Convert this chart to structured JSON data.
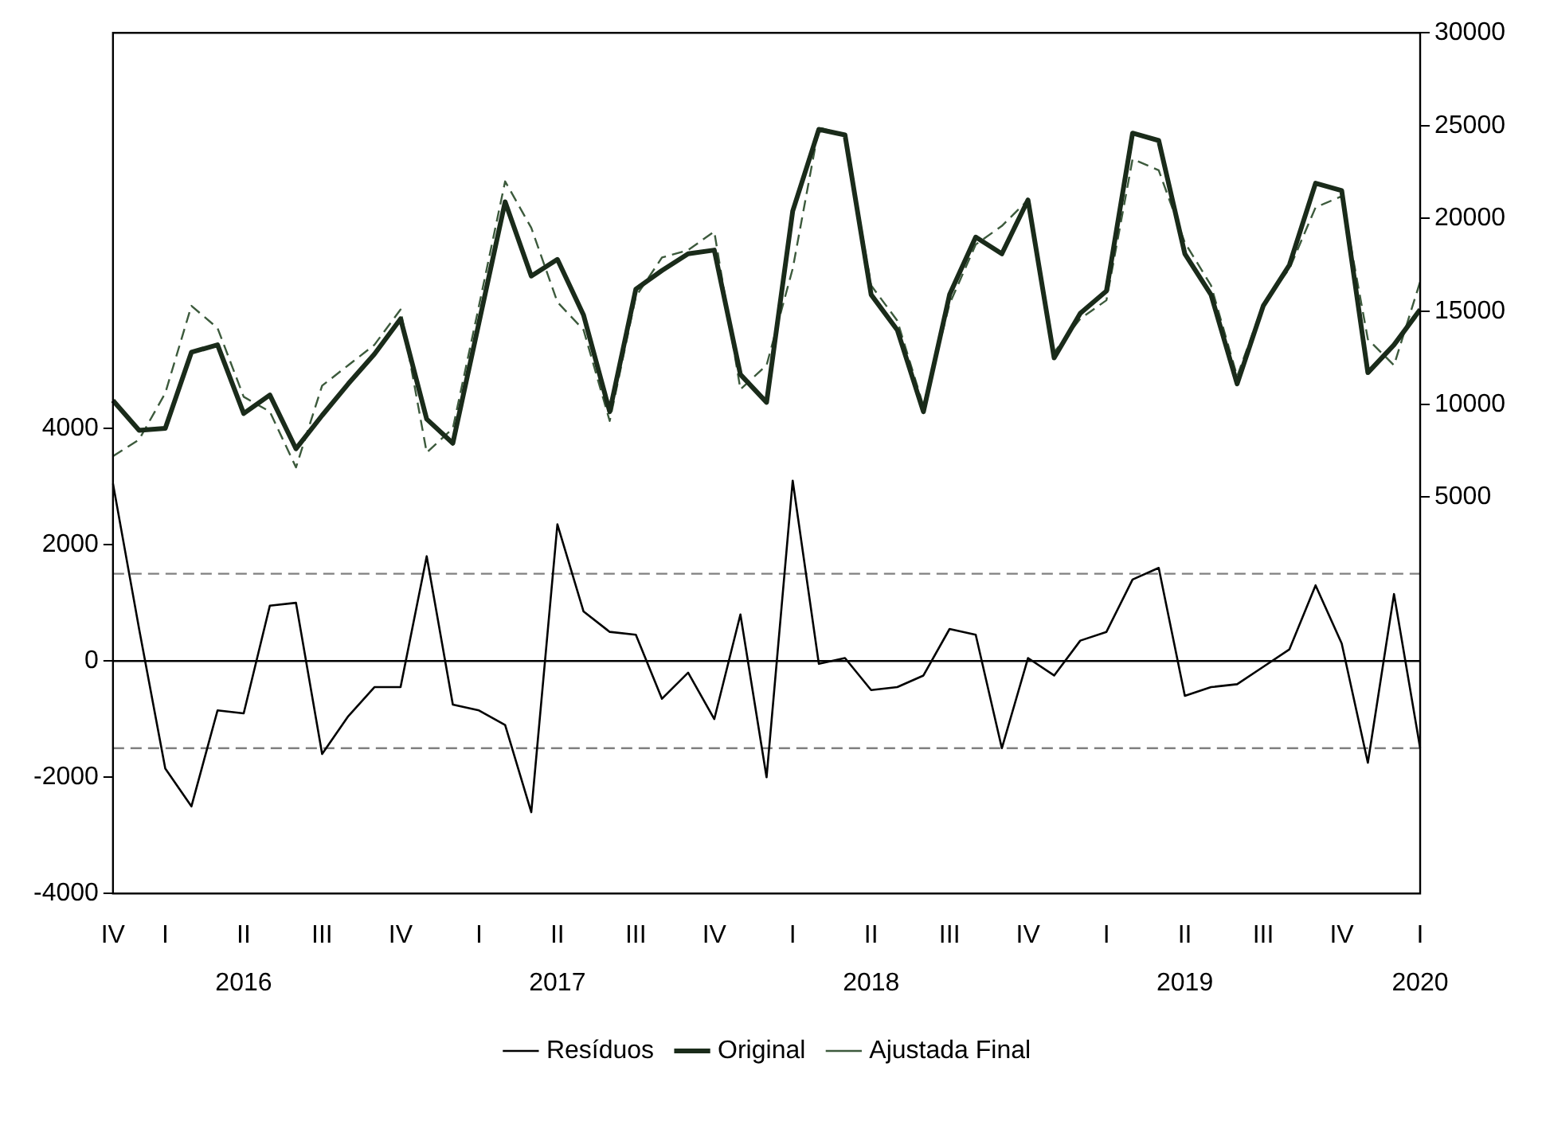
{
  "chart_data": {
    "type": "line",
    "categories": [
      "IV",
      null,
      "I",
      null,
      null,
      "II\n2016",
      null,
      null,
      "III",
      null,
      null,
      "IV",
      null,
      null,
      "I",
      null,
      null,
      "II\n2017",
      null,
      null,
      "III",
      null,
      null,
      "IV",
      null,
      null,
      "I",
      null,
      null,
      "II\n2018",
      null,
      null,
      "III",
      null,
      null,
      "IV",
      null,
      null,
      "I",
      null,
      null,
      "II\n2019",
      null,
      null,
      "III",
      null,
      null,
      "IV",
      null,
      null,
      "I\n2020"
    ],
    "series": [
      {
        "name": "Resíduos",
        "color": "#000000",
        "line_style": "solid",
        "axis": "y",
        "values": [
          3050,
          550,
          -1850,
          -2500,
          -850,
          -900,
          950,
          1000,
          -1600,
          -950,
          -450,
          -450,
          1800,
          -750,
          -850,
          -1100,
          -2600,
          2350,
          850,
          500,
          450,
          -650,
          -200,
          -1000,
          800,
          -2000,
          3100,
          -50,
          50,
          -500,
          -450,
          -250,
          550,
          450,
          -1500,
          50,
          -250,
          350,
          500,
          1400,
          1600,
          -600,
          -450,
          -400,
          -100,
          200,
          1300,
          300,
          -1750,
          1150,
          -1500
        ]
      },
      {
        "name": "Original",
        "color": "#1a2b1a",
        "line_style": "solid",
        "axis": "y2",
        "values": [
          10200,
          8600,
          8700,
          12800,
          13200,
          9500,
          10500,
          7600,
          9400,
          11100,
          12700,
          14600,
          9200,
          7900,
          14400,
          20900,
          16900,
          17800,
          14800,
          9600,
          16200,
          17200,
          18100,
          18300,
          11600,
          10100,
          20400,
          24800,
          24500,
          15900,
          14000,
          9600,
          15900,
          19000,
          18100,
          21000,
          12500,
          14900,
          16100,
          24600,
          24200,
          18100,
          15900,
          11100,
          15300,
          17500,
          21900,
          21500,
          11700,
          13200,
          15100
        ]
      },
      {
        "name": "Ajustada Final",
        "color": "#3c5a3c",
        "line_style": "dashed",
        "axis": "y2",
        "values": [
          7200,
          8100,
          10600,
          15300,
          14100,
          10400,
          9600,
          6600,
          11000,
          12100,
          13200,
          15100,
          7400,
          8700,
          15300,
          22000,
          19500,
          15500,
          14000,
          9100,
          15800,
          17900,
          18300,
          19300,
          10800,
          12100,
          17300,
          24900,
          24500,
          16400,
          14500,
          9900,
          15400,
          18600,
          19600,
          21000,
          12800,
          14600,
          15600,
          23200,
          22600,
          18700,
          16400,
          11500,
          15400,
          17300,
          20600,
          21200,
          13500,
          12100,
          16600
        ]
      }
    ],
    "ylim": [
      -4000,
      10800
    ],
    "yticks": [
      -4000,
      -2000,
      0,
      2000,
      4000
    ],
    "y2lim": [
      -16350,
      30000
    ],
    "y2ticks": [
      5000,
      10000,
      15000,
      20000,
      25000,
      30000
    ],
    "ref_lines": [
      {
        "axis": "y",
        "value": 0,
        "color": "#000000",
        "line_style": "solid"
      },
      {
        "axis": "y",
        "value": 1500,
        "color": "#808080",
        "line_style": "dashed"
      },
      {
        "axis": "y",
        "value": -1500,
        "color": "#808080",
        "line_style": "dashed"
      }
    ],
    "grid": false,
    "legend": "bottom",
    "marker": "none"
  }
}
